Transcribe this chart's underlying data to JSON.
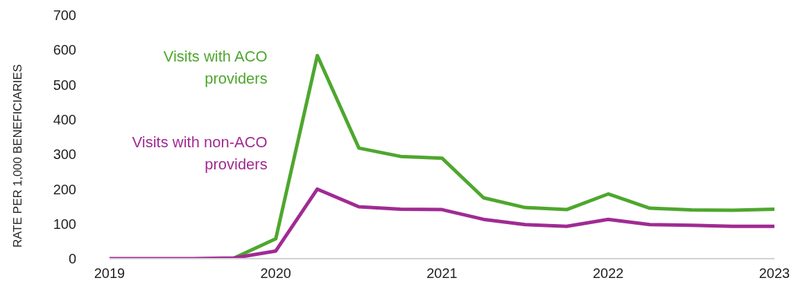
{
  "chart_data": {
    "type": "line",
    "ylabel": "RATE PER 1,000 BENEFICIARIES",
    "x": [
      2019,
      2019.25,
      2019.5,
      2019.75,
      2020,
      2020.25,
      2020.5,
      2020.75,
      2021,
      2021.25,
      2021.5,
      2021.75,
      2022,
      2022.25,
      2022.5,
      2022.75,
      2023
    ],
    "series": [
      {
        "name": "Visits with ACO providers",
        "color": "#4ea72e",
        "values": [
          null,
          null,
          null,
          2,
          57,
          584,
          318,
          294,
          289,
          175,
          147,
          141,
          186,
          145,
          140,
          139,
          142
        ]
      },
      {
        "name": "Visits with non-ACO providers",
        "color": "#a02b93",
        "values": [
          0,
          0,
          0,
          2,
          22,
          200,
          149,
          142,
          141,
          113,
          98,
          93,
          113,
          98,
          96,
          93,
          93
        ]
      }
    ],
    "xlim": [
      2019,
      2023
    ],
    "xticks": [
      2019,
      2020,
      2021,
      2022,
      2023
    ],
    "ylim": [
      0,
      700
    ],
    "yticks": [
      0,
      100,
      200,
      300,
      400,
      500,
      600,
      700
    ],
    "grid": false,
    "legend": false,
    "marker": "none",
    "line_style": "solid"
  }
}
